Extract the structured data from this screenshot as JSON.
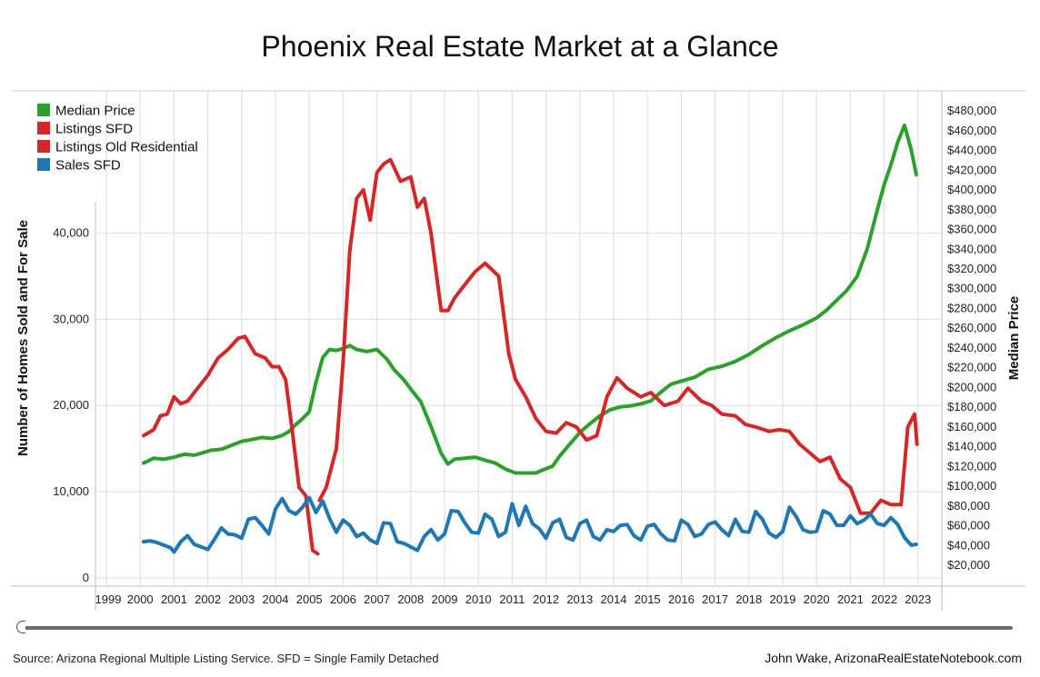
{
  "title": "Phoenix Real Estate Market at a Glance",
  "footer": {
    "source": "Source: Arizona Regional Multiple Listing Service. SFD = Single Family Detached",
    "credit": "John Wake, ArizonaRealEstateNotebook.com"
  },
  "colors": {
    "median_price": "#2ca02c",
    "listings": "#d62728",
    "sales": "#1f77b4",
    "grid": "#dddddd"
  },
  "chart_data": {
    "type": "line",
    "title": "Phoenix Real Estate Market at a Glance",
    "xlabel": "",
    "ylabel": "Number of Homes Sold and For Sale",
    "y2label": "Median Price",
    "x_tick_labels": [
      "1999",
      "2000",
      "2001",
      "2002",
      "2003",
      "2004",
      "2005",
      "2006",
      "2007",
      "2008",
      "2009",
      "2010",
      "2011",
      "2012",
      "2013",
      "2014",
      "2015",
      "2016",
      "2017",
      "2018",
      "2019",
      "2020",
      "2021",
      "2022",
      "2023"
    ],
    "y_tick_labels": [
      "0",
      "10,000",
      "20,000",
      "30,000",
      "40,000"
    ],
    "y2_tick_labels": [
      "$20,000",
      "$40,000",
      "$60,000",
      "$80,000",
      "$100,000",
      "$120,000",
      "$140,000",
      "$160,000",
      "$180,000",
      "$200,000",
      "$220,000",
      "$240,000",
      "$260,000",
      "$280,000",
      "$300,000",
      "$320,000",
      "$340,000",
      "$360,000",
      "$380,000",
      "$400,000",
      "$420,000",
      "$440,000",
      "$460,000",
      "$480,000"
    ],
    "xlim": [
      1999,
      2024
    ],
    "ylim": [
      -500,
      45000
    ],
    "y2lim": [
      20000,
      480000
    ],
    "grid": true,
    "legend_position": "top-left",
    "series": [
      {
        "name": "Median Price",
        "axis": "right",
        "color": "#2ca02c",
        "x": [
          2000.1,
          2000.4,
          2000.7,
          2001.0,
          2001.3,
          2001.6,
          2001.9,
          2002.1,
          2002.4,
          2002.7,
          2003.0,
          2003.3,
          2003.6,
          2003.9,
          2004.2,
          2004.4,
          2004.6,
          2004.8,
          2005.0,
          2005.2,
          2005.4,
          2005.6,
          2005.8,
          2006.0,
          2006.2,
          2006.4,
          2006.7,
          2007.0,
          2007.3,
          2007.5,
          2007.8,
          2008.0,
          2008.3,
          2008.6,
          2008.9,
          2009.1,
          2009.3,
          2009.6,
          2009.9,
          2010.2,
          2010.5,
          2010.8,
          2011.1,
          2011.4,
          2011.7,
          2011.9,
          2012.2,
          2012.4,
          2012.7,
          2013.0,
          2013.3,
          2013.6,
          2013.9,
          2014.2,
          2014.5,
          2014.8,
          2015.1,
          2015.4,
          2015.7,
          2016.0,
          2016.4,
          2016.8,
          2017.2,
          2017.6,
          2018.0,
          2018.4,
          2018.8,
          2019.2,
          2019.6,
          2020.0,
          2020.3,
          2020.6,
          2020.9,
          2021.2,
          2021.5,
          2021.8,
          2022.0,
          2022.2,
          2022.4,
          2022.6,
          2022.8,
          2022.95
        ],
        "values": [
          123000,
          128000,
          127000,
          129000,
          132000,
          131000,
          134000,
          136000,
          137000,
          141000,
          145000,
          147000,
          149000,
          148000,
          151000,
          155000,
          162000,
          168000,
          175000,
          205000,
          230000,
          238000,
          237000,
          239000,
          242000,
          238000,
          236000,
          238000,
          228000,
          218000,
          207000,
          198000,
          185000,
          160000,
          133000,
          122000,
          127000,
          128000,
          129000,
          126000,
          123000,
          117000,
          113000,
          113000,
          113000,
          116000,
          120000,
          130000,
          142000,
          154000,
          163000,
          171000,
          177000,
          180000,
          181000,
          183000,
          186000,
          195000,
          203000,
          206000,
          210000,
          218000,
          221000,
          226000,
          233000,
          242000,
          250000,
          257000,
          263000,
          270000,
          278000,
          288000,
          298000,
          312000,
          340000,
          380000,
          405000,
          425000,
          448000,
          465000,
          440000,
          415000
        ]
      },
      {
        "name": "Listings SFD",
        "axis": "left",
        "color": "#d62728",
        "x": [
          2000.1,
          2000.4,
          2000.6,
          2000.8,
          2001.0,
          2001.2,
          2001.4,
          2001.7,
          2002.0,
          2002.3,
          2002.6,
          2002.9,
          2003.1,
          2003.4,
          2003.7,
          2003.9,
          2004.1,
          2004.3,
          2004.5,
          2004.7,
          2004.9,
          2005.1,
          2005.25
        ],
        "values": [
          16500,
          17200,
          18800,
          19000,
          21000,
          20200,
          20500,
          22000,
          23500,
          25500,
          26500,
          27800,
          28000,
          26000,
          25500,
          24500,
          24500,
          23000,
          17000,
          10500,
          9500,
          3200,
          2800
        ]
      },
      {
        "name": "Listings Old Residential",
        "axis": "left",
        "color": "#d62728",
        "x": [
          2005.3,
          2005.5,
          2005.8,
          2006.0,
          2006.2,
          2006.4,
          2006.6,
          2006.8,
          2007.0,
          2007.2,
          2007.4,
          2007.7,
          2008.0,
          2008.2,
          2008.4,
          2008.6,
          2008.9,
          2009.1,
          2009.3,
          2009.6,
          2009.9,
          2010.2,
          2010.6,
          2010.9,
          2011.1,
          2011.4,
          2011.7,
          2012.0,
          2012.3,
          2012.6,
          2012.9,
          2013.2,
          2013.5,
          2013.8,
          2014.1,
          2014.4,
          2014.8,
          2015.1,
          2015.5,
          2015.9,
          2016.2,
          2016.6,
          2016.9,
          2017.2,
          2017.6,
          2017.9,
          2018.2,
          2018.6,
          2018.9,
          2019.2,
          2019.5,
          2019.8,
          2020.1,
          2020.4,
          2020.7,
          2021.0,
          2021.3,
          2021.6,
          2021.9,
          2022.2,
          2022.5,
          2022.7,
          2022.9,
          2022.97
        ],
        "values": [
          9000,
          10500,
          15000,
          25000,
          38000,
          44000,
          45000,
          41500,
          47000,
          48000,
          48500,
          46000,
          46500,
          43000,
          44000,
          40000,
          31000,
          31000,
          32500,
          34000,
          35500,
          36500,
          35000,
          26000,
          23000,
          21000,
          18500,
          17000,
          16800,
          18000,
          17500,
          16000,
          16500,
          21000,
          23200,
          22000,
          21000,
          21500,
          20000,
          20500,
          22000,
          20500,
          20000,
          19000,
          18800,
          17800,
          17500,
          17000,
          17200,
          17000,
          15500,
          14500,
          13500,
          14000,
          11500,
          10500,
          7500,
          7500,
          9000,
          8500,
          8500,
          17500,
          19000,
          15500
        ]
      },
      {
        "name": "Sales SFD",
        "axis": "left",
        "color": "#1f77b4",
        "x": [
          2000.1,
          2000.3,
          2000.5,
          2000.7,
          2000.9,
          2001.0,
          2001.2,
          2001.4,
          2001.6,
          2001.8,
          2002.0,
          2002.2,
          2002.4,
          2002.6,
          2002.8,
          2003.0,
          2003.2,
          2003.4,
          2003.6,
          2003.8,
          2004.0,
          2004.2,
          2004.4,
          2004.6,
          2004.8,
          2005.0,
          2005.2,
          2005.4,
          2005.6,
          2005.8,
          2006.0,
          2006.2,
          2006.4,
          2006.6,
          2006.8,
          2007.0,
          2007.2,
          2007.4,
          2007.6,
          2007.8,
          2008.0,
          2008.2,
          2008.4,
          2008.6,
          2008.8,
          2009.0,
          2009.2,
          2009.4,
          2009.6,
          2009.8,
          2010.0,
          2010.2,
          2010.4,
          2010.6,
          2010.8,
          2011.0,
          2011.2,
          2011.4,
          2011.6,
          2011.8,
          2012.0,
          2012.2,
          2012.4,
          2012.6,
          2012.8,
          2013.0,
          2013.2,
          2013.4,
          2013.6,
          2013.8,
          2014.0,
          2014.2,
          2014.4,
          2014.6,
          2014.8,
          2015.0,
          2015.2,
          2015.4,
          2015.6,
          2015.8,
          2016.0,
          2016.2,
          2016.4,
          2016.6,
          2016.8,
          2017.0,
          2017.2,
          2017.4,
          2017.6,
          2017.8,
          2018.0,
          2018.2,
          2018.4,
          2018.6,
          2018.8,
          2019.0,
          2019.2,
          2019.4,
          2019.6,
          2019.8,
          2020.0,
          2020.2,
          2020.4,
          2020.6,
          2020.8,
          2021.0,
          2021.2,
          2021.4,
          2021.6,
          2021.8,
          2022.0,
          2022.2,
          2022.4,
          2022.6,
          2022.8,
          2022.95
        ],
        "values": [
          4200,
          4300,
          4100,
          3800,
          3500,
          3000,
          4200,
          4900,
          3900,
          3600,
          3300,
          4500,
          5800,
          5100,
          5000,
          4600,
          6800,
          7000,
          6100,
          5100,
          8000,
          9200,
          7800,
          7400,
          8200,
          9300,
          7600,
          8900,
          6900,
          5300,
          6700,
          6100,
          4800,
          5200,
          4400,
          4000,
          6400,
          6300,
          4200,
          4000,
          3600,
          3200,
          4800,
          5600,
          4400,
          5100,
          7800,
          7700,
          6400,
          5300,
          5200,
          7400,
          6800,
          4800,
          5300,
          8600,
          6100,
          8300,
          6300,
          5700,
          4600,
          6400,
          6800,
          4700,
          4400,
          6300,
          6700,
          4800,
          4400,
          5600,
          5400,
          6100,
          6200,
          4900,
          4400,
          6000,
          6200,
          5100,
          4400,
          4300,
          6700,
          6200,
          4800,
          5100,
          6200,
          6500,
          5600,
          4900,
          6800,
          5400,
          5300,
          7700,
          6800,
          5200,
          4700,
          5400,
          8200,
          7100,
          5600,
          5300,
          5400,
          7800,
          7400,
          6100,
          6100,
          7200,
          6300,
          6700,
          7400,
          6300,
          6100,
          7000,
          6200,
          4700,
          3800,
          3900
        ]
      }
    ]
  }
}
